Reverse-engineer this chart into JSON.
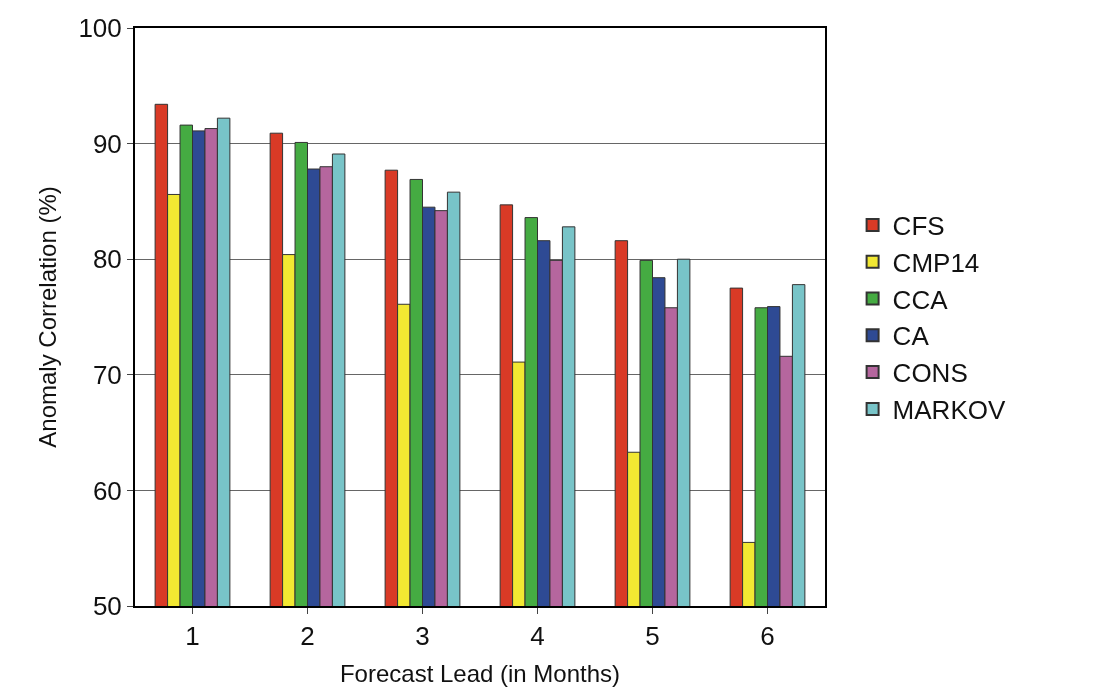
{
  "chart_data": {
    "type": "bar",
    "xlabel": "Forecast Lead (in Months)",
    "ylabel": "Anomaly Correlation (%)",
    "categories": [
      "1",
      "2",
      "3",
      "4",
      "5",
      "6"
    ],
    "series": [
      {
        "name": "CFS",
        "color": "#d93a26",
        "values": [
          93.4,
          90.9,
          87.7,
          84.7,
          81.6,
          77.5
        ]
      },
      {
        "name": "CMP14",
        "color": "#f2e832",
        "values": [
          85.6,
          80.4,
          76.1,
          71.1,
          63.3,
          55.5
        ]
      },
      {
        "name": "CCA",
        "color": "#45ab42",
        "values": [
          91.6,
          90.1,
          86.9,
          83.6,
          79.9,
          75.8
        ]
      },
      {
        "name": "CA",
        "color": "#2e4a94",
        "values": [
          91.1,
          87.8,
          84.5,
          81.6,
          78.4,
          75.9
        ]
      },
      {
        "name": "CONS",
        "color": "#b5669e",
        "values": [
          91.3,
          88.0,
          84.2,
          79.9,
          75.8,
          71.6
        ]
      },
      {
        "name": "MARKOV",
        "color": "#78c4c8",
        "values": [
          92.2,
          89.1,
          85.8,
          82.8,
          80.0,
          77.8
        ]
      }
    ],
    "ylim": [
      50,
      100
    ],
    "yticks": [
      50,
      60,
      70,
      80,
      90,
      100
    ],
    "grid": "y",
    "legend": "right"
  }
}
